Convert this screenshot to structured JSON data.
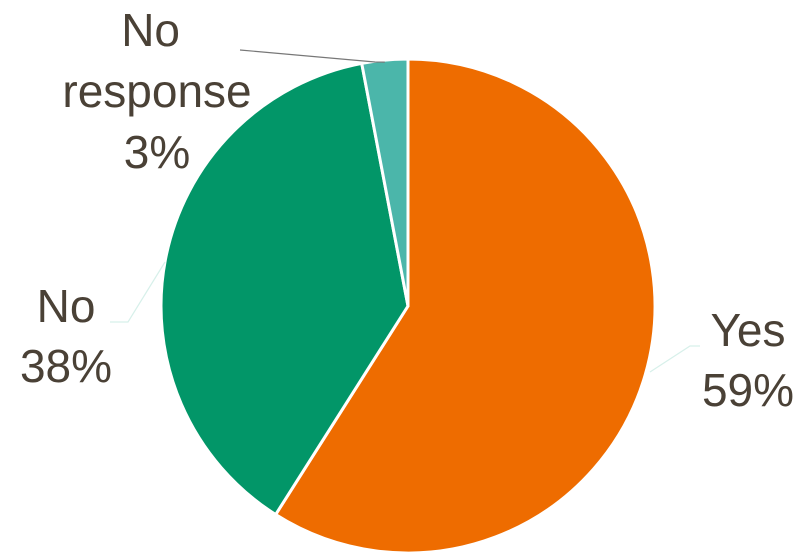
{
  "chart_data": {
    "type": "pie",
    "title": "",
    "slices": [
      {
        "name": "Yes",
        "value": 59,
        "label": "59%",
        "color": "#ee6c00"
      },
      {
        "name": "No",
        "value": 38,
        "label": "38%",
        "color": "#029668"
      },
      {
        "name": "No response",
        "value": 3,
        "label": "3%",
        "color": "#4bb6aa"
      }
    ],
    "start_angle_deg": 0,
    "direction": "clockwise",
    "slice_border_color": "#ffffff",
    "legend": "none"
  }
}
